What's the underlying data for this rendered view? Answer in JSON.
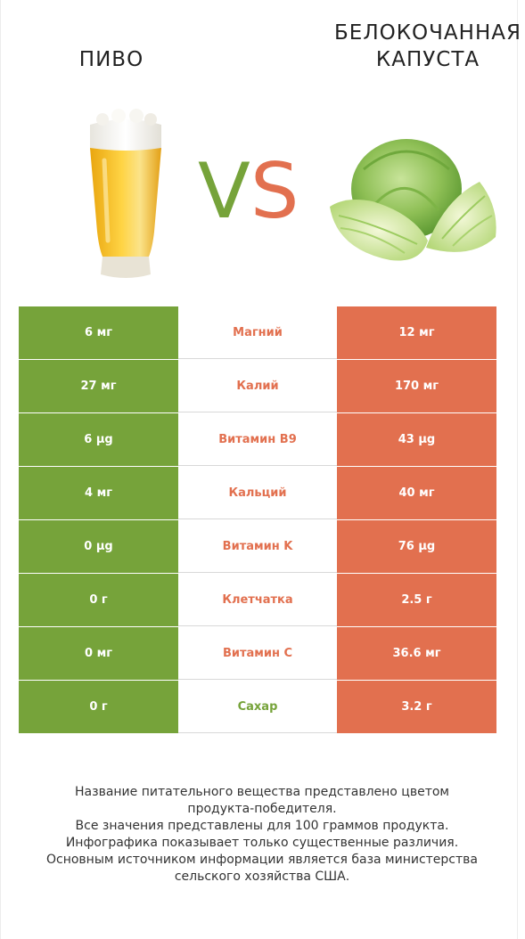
{
  "header": {
    "left_title": "ПИВО",
    "right_title_line1": "БЕЛОКОЧАННАЯ",
    "right_title_line2": "КАПУСТА",
    "vs_v": "V",
    "vs_s": "S"
  },
  "colors": {
    "left_winner": "#76a33a",
    "right_winner": "#e2704f",
    "neutral": "#ffffff"
  },
  "rows": [
    {
      "left": "6 мг",
      "label": "Магний",
      "right": "12 мг",
      "winner": "right"
    },
    {
      "left": "27 мг",
      "label": "Калий",
      "right": "170 мг",
      "winner": "right"
    },
    {
      "left": "6 µg",
      "label": "Витамин B9",
      "right": "43 µg",
      "winner": "right"
    },
    {
      "left": "4 мг",
      "label": "Кальций",
      "right": "40 мг",
      "winner": "right"
    },
    {
      "left": "0 µg",
      "label": "Витамин K",
      "right": "76 µg",
      "winner": "right"
    },
    {
      "left": "0 г",
      "label": "Клетчатка",
      "right": "2.5 г",
      "winner": "right"
    },
    {
      "left": "0 мг",
      "label": "Витамин C",
      "right": "36.6 мг",
      "winner": "right"
    },
    {
      "left": "0 г",
      "label": "Сахар",
      "right": "3.2 г",
      "winner": "left"
    }
  ],
  "footnote": {
    "line1": "Название питательного вещества представлено цветом",
    "line2": "продукта-победителя.",
    "line3": "Все значения представлены для 100 граммов продукта.",
    "line4": "Инфографика показывает только существенные различия.",
    "line5": "Основным источником информации является база министерства",
    "line6": "сельского хозяйства США."
  },
  "images": {
    "left": "beer-glass-image",
    "right": "cabbage-image"
  }
}
